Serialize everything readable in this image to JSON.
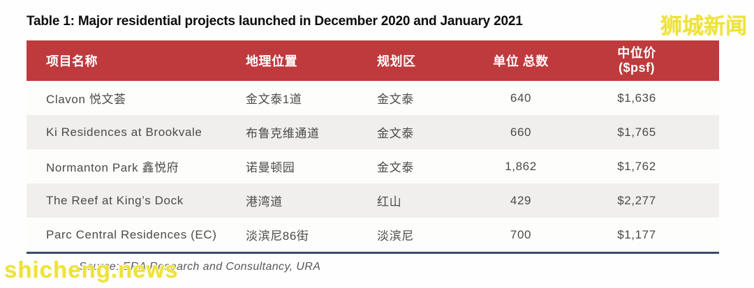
{
  "title": "Table 1: Major residential projects launched in December 2020 and January 2021",
  "source_note": "Source: ERA Research and Consultancy, URA",
  "watermarks": {
    "top_right": "狮城新闻",
    "bottom_left": "shicheng.news"
  },
  "colors": {
    "header_bg": "#be3a3c",
    "row_bg": "#fdfdfb",
    "row_alt_bg": "#f0efed",
    "bottom_rule": "#3c4a6d",
    "watermark_yellow": "#eee23a",
    "header_text": "#ffffff",
    "cell_text": "#4a4a4a"
  },
  "chart_data": {
    "type": "table",
    "title": "Table 1: Major residential projects launched in December 2020 and January 2021",
    "columns": [
      {
        "label": "项目名称"
      },
      {
        "label": "地理位置"
      },
      {
        "label": "规划区"
      },
      {
        "label": "单位 总数"
      },
      {
        "label": "中位价",
        "label2": "($psf)"
      }
    ],
    "rows": [
      {
        "project": "Clavon 悦文荟",
        "location": "金文泰1道",
        "district": "金文泰",
        "units": "640",
        "price": "$1,636"
      },
      {
        "project": "Ki Residences at Brookvale",
        "location": "布鲁克维通道",
        "district": "金文泰",
        "units": "660",
        "price": "$1,765"
      },
      {
        "project": "Normanton Park 鑫悦府",
        "location": "诺曼顿园",
        "district": "金文泰",
        "units": "1,862",
        "price": "$1,762"
      },
      {
        "project": "The Reef at King’s Dock",
        "location": "港湾道",
        "district": "红山",
        "units": "429",
        "price": "$2,277"
      },
      {
        "project": "Parc Central Residences (EC)",
        "location": "淡滨尼86街",
        "district": "淡滨尼",
        "units": "700",
        "price": "$1,177"
      }
    ],
    "source": "Source: ERA Research and Consultancy, URA",
    "layout": {
      "legend": "none",
      "grid": "off",
      "zebra_striping": true
    }
  }
}
